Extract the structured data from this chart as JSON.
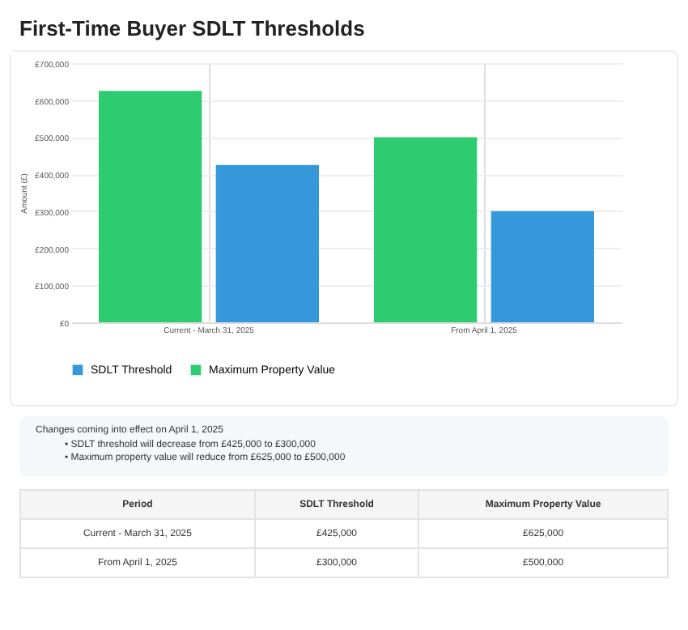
{
  "chart_data": {
    "type": "bar",
    "title": "First-Time Buyer SDLT Thresholds",
    "ylabel": "Amount (£)",
    "categories": [
      "Current - March 31, 2025",
      "From April 1, 2025"
    ],
    "series": [
      {
        "name": "Maximum Property Value",
        "color": "#2ecc71",
        "values": [
          625000,
          500000
        ]
      },
      {
        "name": "SDLT Threshold",
        "color": "#3498db",
        "values": [
          425000,
          300000
        ]
      }
    ],
    "ylim": [
      0,
      700000
    ],
    "yticks": [
      {
        "value": 0,
        "label": "£0"
      },
      {
        "value": 100000,
        "label": "£100,000"
      },
      {
        "value": 200000,
        "label": "£200,000"
      },
      {
        "value": 300000,
        "label": "£300,000"
      },
      {
        "value": 400000,
        "label": "£400,000"
      },
      {
        "value": 500000,
        "label": "£500,000"
      },
      {
        "value": 600000,
        "label": "£600,000"
      },
      {
        "value": 700000,
        "label": "£700,000"
      }
    ],
    "grid": true,
    "legend": "bottom",
    "annotations": [
      "Changes coming into effect on April 1, 2025",
      "• SDLT threshold will decrease from £425,000 to £300,000",
      "• Maximum property value will reduce from £625,000 to £500,000",
      "Period",
      "SDLT Threshold",
      "Maximum Property Value",
      "Current - March 31, 2025",
      "£425,000",
      "£625,000",
      "From April 1, 2025",
      "£300,000",
      "£500,000"
    ]
  }
}
